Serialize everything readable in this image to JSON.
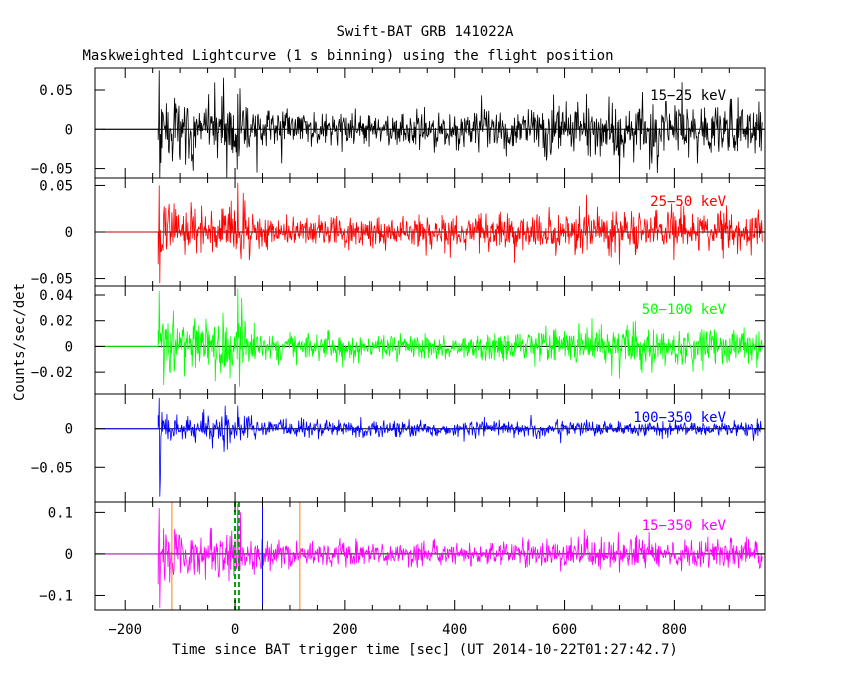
{
  "header": {
    "title": "Swift-BAT GRB 141022A",
    "subtitle": "Maskweighted Lightcurve (1 s binning) using the flight position"
  },
  "chart_data": {
    "type": "line",
    "title": "Swift-BAT GRB 141022A",
    "subtitle": "Maskweighted Lightcurve (1 s binning) using the flight position",
    "xlabel": "Time since BAT trigger time [sec] (UT 2014-10-22T01:27:42.7)",
    "ylabel": "Counts/sec/det",
    "xlim": [
      -255,
      965
    ],
    "x_ticks": [
      -200,
      0,
      200,
      400,
      600,
      800
    ],
    "x_tick_labels": [
      "−200",
      "0",
      "200",
      "400",
      "600",
      "800"
    ],
    "data_start": -140,
    "data_end": 960,
    "flat_before": -240,
    "panels": [
      {
        "name": "15−25 keV",
        "color": "#000000",
        "ylim": [
          -0.062,
          0.078
        ],
        "yticks": [
          -0.05,
          0,
          0.05
        ],
        "ytick_labels": [
          "−0.05",
          "0",
          "0.05"
        ],
        "noise": [
          [
            -140,
            0.028
          ],
          [
            -100,
            0.018
          ],
          [
            0,
            0.02
          ],
          [
            50,
            0.012
          ],
          [
            300,
            0.01
          ],
          [
            500,
            0.012
          ],
          [
            600,
            0.018
          ],
          [
            700,
            0.02
          ],
          [
            960,
            0.016
          ]
        ],
        "spikes": [
          [
            -138,
            0.075
          ],
          [
            -137,
            -0.062
          ],
          [
            -110,
            0.04
          ],
          [
            -90,
            -0.045
          ],
          [
            5,
            0.045
          ],
          [
            40,
            -0.055
          ],
          [
            700,
            -0.062
          ],
          [
            640,
            0.045
          ]
        ]
      },
      {
        "name": "25−50 keV",
        "color": "#ff0000",
        "ylim": [
          -0.058,
          0.058
        ],
        "yticks": [
          -0.05,
          0,
          0.05
        ],
        "ytick_labels": [
          "−0.05",
          "0",
          "0.05"
        ],
        "noise": [
          [
            -140,
            0.018
          ],
          [
            -100,
            0.012
          ],
          [
            0,
            0.015
          ],
          [
            50,
            0.008
          ],
          [
            300,
            0.008
          ],
          [
            600,
            0.011
          ],
          [
            700,
            0.013
          ],
          [
            960,
            0.011
          ]
        ],
        "spikes": [
          [
            -138,
            0.05
          ],
          [
            -137,
            -0.055
          ],
          [
            5,
            0.053
          ],
          [
            15,
            0.042
          ],
          [
            640,
            0.04
          ],
          [
            700,
            -0.035
          ]
        ]
      },
      {
        "name": "50−100 keV",
        "color": "#00ff00",
        "ylim": [
          -0.037,
          0.047
        ],
        "yticks": [
          -0.02,
          0,
          0.02,
          0.04
        ],
        "ytick_labels": [
          "−0.02",
          "0",
          "0.02",
          "0.04"
        ],
        "noise": [
          [
            -140,
            0.014
          ],
          [
            -100,
            0.01
          ],
          [
            0,
            0.012
          ],
          [
            50,
            0.006
          ],
          [
            300,
            0.005
          ],
          [
            600,
            0.007
          ],
          [
            700,
            0.008
          ],
          [
            960,
            0.007
          ]
        ],
        "spikes": [
          [
            -138,
            0.043
          ],
          [
            -130,
            -0.03
          ],
          [
            5,
            0.045
          ],
          [
            12,
            0.038
          ],
          [
            700,
            -0.025
          ],
          [
            650,
            0.022
          ]
        ]
      },
      {
        "name": "100−350 keV",
        "color": "#0000ff",
        "ylim": [
          -0.095,
          0.045
        ],
        "yticks": [
          -0.05,
          0
        ],
        "ytick_labels": [
          "−0.05",
          "0"
        ],
        "noise": [
          [
            -140,
            0.014
          ],
          [
            -100,
            0.009
          ],
          [
            0,
            0.01
          ],
          [
            50,
            0.006
          ],
          [
            300,
            0.005
          ],
          [
            960,
            0.005
          ]
        ],
        "spikes": [
          [
            -138,
            0.04
          ],
          [
            -137,
            -0.088
          ],
          [
            -136,
            -0.065
          ],
          [
            -20,
            -0.03
          ],
          [
            5,
            0.03
          ]
        ]
      },
      {
        "name": "15−350 keV",
        "color": "#ff00ff",
        "ylim": [
          -0.135,
          0.125
        ],
        "yticks": [
          -0.1,
          0,
          0.1
        ],
        "ytick_labels": [
          "−0.1",
          "0",
          "0.1"
        ],
        "noise": [
          [
            -140,
            0.04
          ],
          [
            -100,
            0.028
          ],
          [
            0,
            0.03
          ],
          [
            50,
            0.016
          ],
          [
            300,
            0.013
          ],
          [
            600,
            0.018
          ],
          [
            700,
            0.02
          ],
          [
            960,
            0.018
          ]
        ],
        "spikes": [
          [
            -138,
            0.11
          ],
          [
            -137,
            -0.13
          ],
          [
            5,
            0.12
          ],
          [
            10,
            0.1
          ],
          [
            -110,
            0.06
          ],
          [
            700,
            -0.045
          ]
        ],
        "markers": [
          {
            "x": -115,
            "color": "#ff8000",
            "dashed": false
          },
          {
            "x": 0,
            "color": "#00a000",
            "dashed": true
          },
          {
            "x": 7,
            "color": "#00a000",
            "dashed": true
          },
          {
            "x": 50,
            "color": "#0000ff",
            "dashed": false
          },
          {
            "x": 118,
            "color": "#ff8000",
            "dashed": false
          }
        ]
      }
    ]
  }
}
